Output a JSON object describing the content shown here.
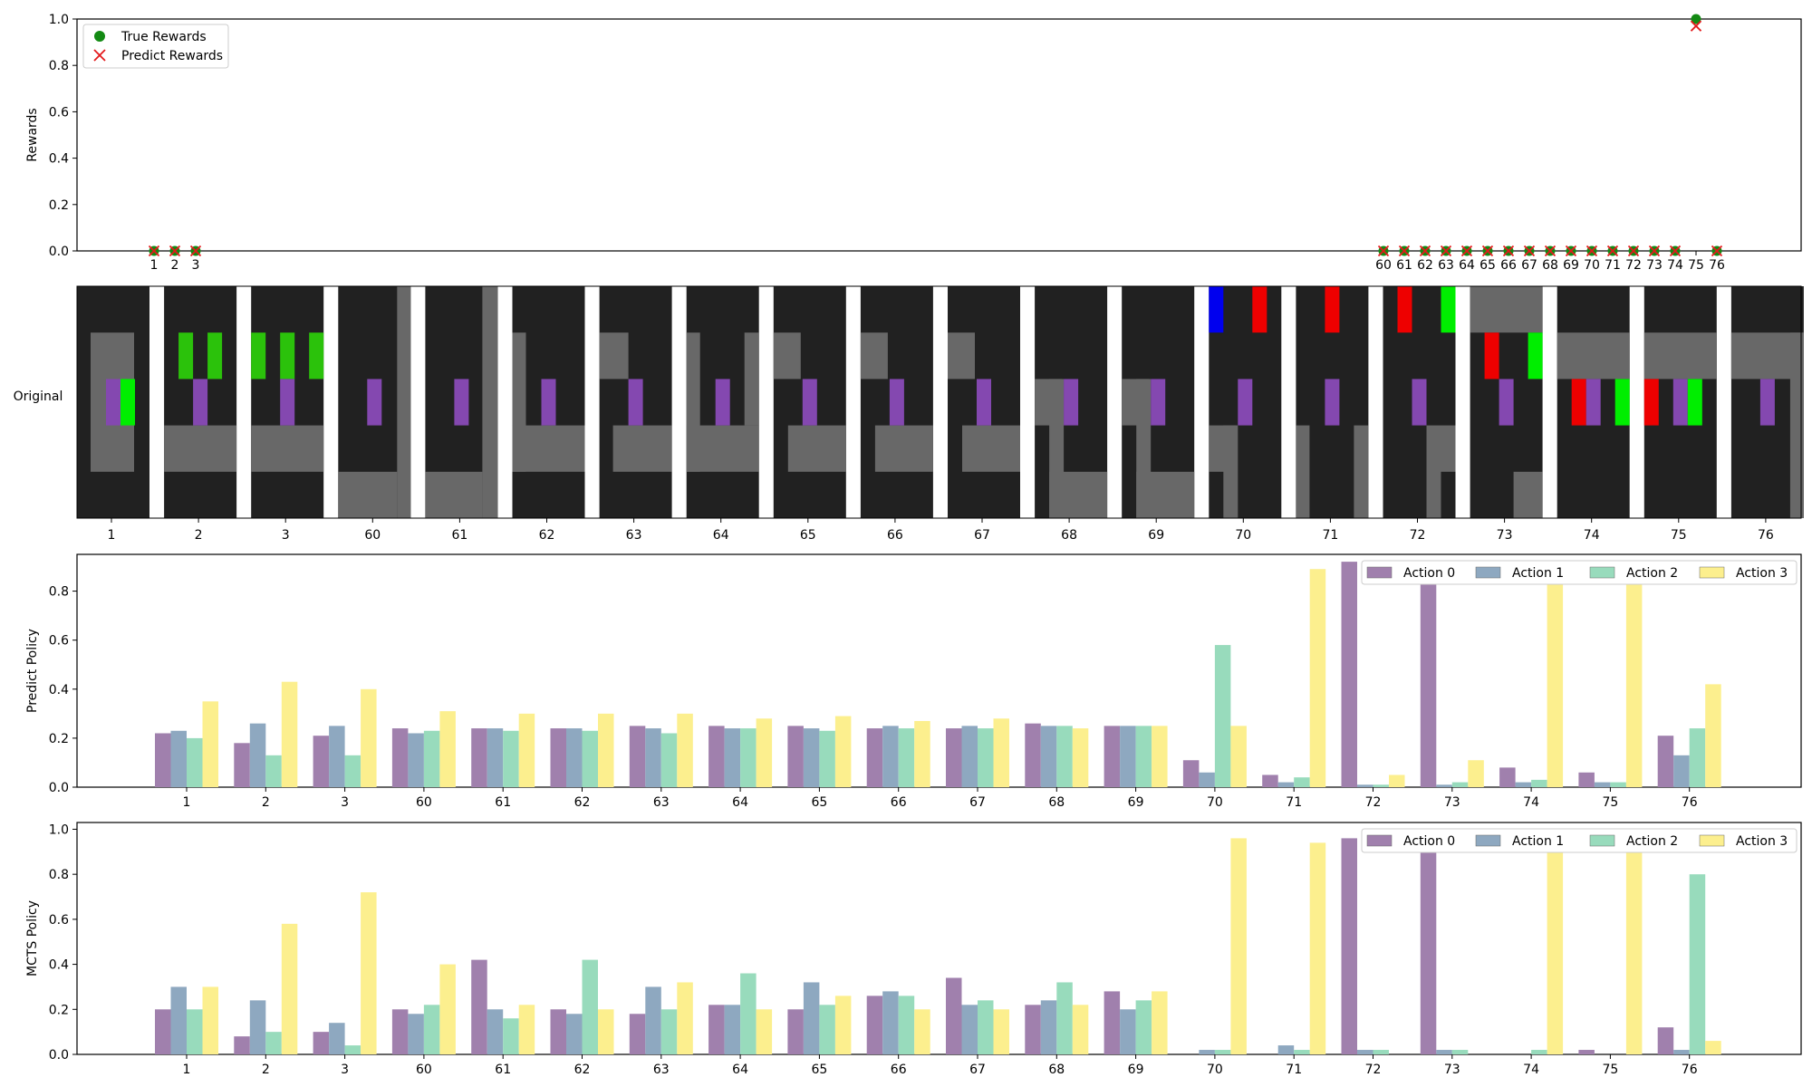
{
  "colors": {
    "action_0": "#a080ad",
    "action_1": "#8ea8c0",
    "action_2": "#98dbbc",
    "action_3": "#fcef8e",
    "true_reward": "#138a13",
    "predict_reward": "#e31a1c",
    "frame_background": "#212121",
    "frame_wall": "#686868",
    "frame_agent": "#8448b0",
    "frame_goal": "#00ee00",
    "frame_key": "#2bc20b",
    "frame_red": "#ee0000",
    "frame_blue": "#0000ee",
    "separator": "#ffffff"
  },
  "chart_data": [
    {
      "type": "scatter",
      "ylabel": "Rewards",
      "ylim": [
        0,
        1
      ],
      "yticks": [
        "0.0",
        "0.2",
        "0.4",
        "0.6",
        "0.8",
        "1.0"
      ],
      "legend_position": "upper-left",
      "legend": [
        "True Rewards",
        "Predict Rewards"
      ],
      "x": [
        "1",
        "2",
        "3",
        "60",
        "61",
        "62",
        "63",
        "64",
        "65",
        "66",
        "67",
        "68",
        "69",
        "70",
        "71",
        "72",
        "73",
        "74",
        "75",
        "76"
      ],
      "series": [
        {
          "name": "True Rewards",
          "marker": "circle",
          "values": [
            0,
            0,
            0,
            0,
            0,
            0,
            0,
            0,
            0,
            0,
            0,
            0,
            0,
            0,
            0,
            0,
            0,
            0,
            1.0,
            0
          ]
        },
        {
          "name": "Predict Rewards",
          "marker": "x",
          "values": [
            0,
            0,
            0,
            0,
            0,
            0,
            0,
            0,
            0,
            0,
            0,
            0,
            0,
            0,
            0,
            0,
            0,
            0,
            0.97,
            0
          ]
        }
      ]
    },
    {
      "type": "image-strip",
      "ylabel": "Original",
      "labels": [
        "1",
        "2",
        "3",
        "60",
        "61",
        "62",
        "63",
        "64",
        "65",
        "66",
        "67",
        "68",
        "69",
        "70",
        "71",
        "72",
        "73",
        "74",
        "75",
        "76"
      ]
    },
    {
      "type": "bar",
      "ylabel": "Predict Policy",
      "ylim": [
        0,
        0.95
      ],
      "yticks": [
        "0.0",
        "0.2",
        "0.4",
        "0.6",
        "0.8"
      ],
      "legend_position": "upper-right",
      "categories": [
        "1",
        "2",
        "3",
        "60",
        "61",
        "62",
        "63",
        "64",
        "65",
        "66",
        "67",
        "68",
        "69",
        "70",
        "71",
        "72",
        "73",
        "74",
        "75",
        "76"
      ],
      "series": [
        {
          "name": "Action 0",
          "values": [
            0.22,
            0.18,
            0.21,
            0.24,
            0.24,
            0.24,
            0.25,
            0.25,
            0.25,
            0.24,
            0.24,
            0.26,
            0.25,
            0.11,
            0.05,
            0.92,
            0.85,
            0.08,
            0.06,
            0.21
          ]
        },
        {
          "name": "Action 1",
          "values": [
            0.23,
            0.26,
            0.25,
            0.22,
            0.24,
            0.24,
            0.24,
            0.24,
            0.24,
            0.25,
            0.25,
            0.25,
            0.25,
            0.06,
            0.02,
            0.01,
            0.01,
            0.02,
            0.02,
            0.13
          ]
        },
        {
          "name": "Action 2",
          "values": [
            0.2,
            0.13,
            0.13,
            0.23,
            0.23,
            0.23,
            0.22,
            0.24,
            0.23,
            0.24,
            0.24,
            0.25,
            0.25,
            0.58,
            0.04,
            0.01,
            0.02,
            0.03,
            0.02,
            0.24
          ]
        },
        {
          "name": "Action 3",
          "values": [
            0.35,
            0.43,
            0.4,
            0.31,
            0.3,
            0.3,
            0.3,
            0.28,
            0.29,
            0.27,
            0.28,
            0.24,
            0.25,
            0.25,
            0.89,
            0.05,
            0.11,
            0.87,
            0.9,
            0.42
          ]
        }
      ]
    },
    {
      "type": "bar",
      "ylabel": "MCTS Policy",
      "ylim": [
        0,
        1.03
      ],
      "yticks": [
        "0.0",
        "0.2",
        "0.4",
        "0.6",
        "0.8",
        "1.0"
      ],
      "legend_position": "upper-right",
      "categories": [
        "1",
        "2",
        "3",
        "60",
        "61",
        "62",
        "63",
        "64",
        "65",
        "66",
        "67",
        "68",
        "69",
        "70",
        "71",
        "72",
        "73",
        "74",
        "75",
        "76"
      ],
      "series": [
        {
          "name": "Action 0",
          "values": [
            0.2,
            0.08,
            0.1,
            0.2,
            0.42,
            0.2,
            0.18,
            0.22,
            0.2,
            0.26,
            0.34,
            0.22,
            0.28,
            0.0,
            0.0,
            0.96,
            0.94,
            0.0,
            0.02,
            0.12
          ]
        },
        {
          "name": "Action 1",
          "values": [
            0.3,
            0.24,
            0.14,
            0.18,
            0.2,
            0.18,
            0.3,
            0.22,
            0.32,
            0.28,
            0.22,
            0.24,
            0.2,
            0.02,
            0.04,
            0.02,
            0.02,
            0.0,
            0.0,
            0.02
          ]
        },
        {
          "name": "Action 2",
          "values": [
            0.2,
            0.1,
            0.04,
            0.22,
            0.16,
            0.42,
            0.2,
            0.36,
            0.22,
            0.26,
            0.24,
            0.32,
            0.24,
            0.02,
            0.02,
            0.02,
            0.02,
            0.02,
            0.0,
            0.8
          ]
        },
        {
          "name": "Action 3",
          "values": [
            0.3,
            0.58,
            0.72,
            0.4,
            0.22,
            0.2,
            0.32,
            0.2,
            0.26,
            0.2,
            0.2,
            0.22,
            0.28,
            0.96,
            0.94,
            0.0,
            0.0,
            0.94,
            0.94,
            0.06
          ]
        }
      ]
    }
  ]
}
